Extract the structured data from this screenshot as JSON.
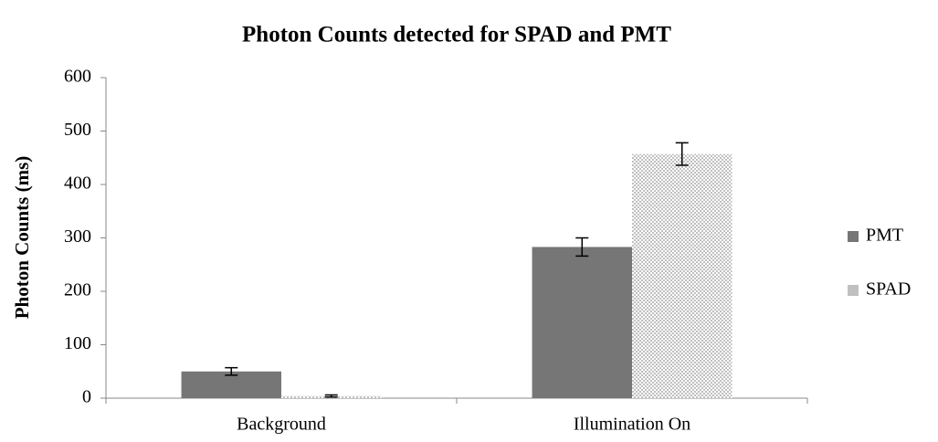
{
  "chart_data": {
    "type": "bar",
    "title": "Photon Counts detected for  SPAD and PMT",
    "y_label": "Photon Counts (ms)",
    "categories": [
      "Background",
      "Illumination On"
    ],
    "series": [
      {
        "name": "PMT",
        "color": "#767676",
        "values": [
          50,
          283
        ],
        "errors": [
          7,
          17
        ]
      },
      {
        "name": "SPAD",
        "color": "#c0c0c0",
        "values": [
          4,
          457
        ],
        "errors": [
          2,
          21
        ]
      }
    ],
    "ylim": [
      0,
      600
    ],
    "yticks": [
      0,
      100,
      200,
      300,
      400,
      500,
      600
    ],
    "grid": false,
    "legend": "right"
  }
}
